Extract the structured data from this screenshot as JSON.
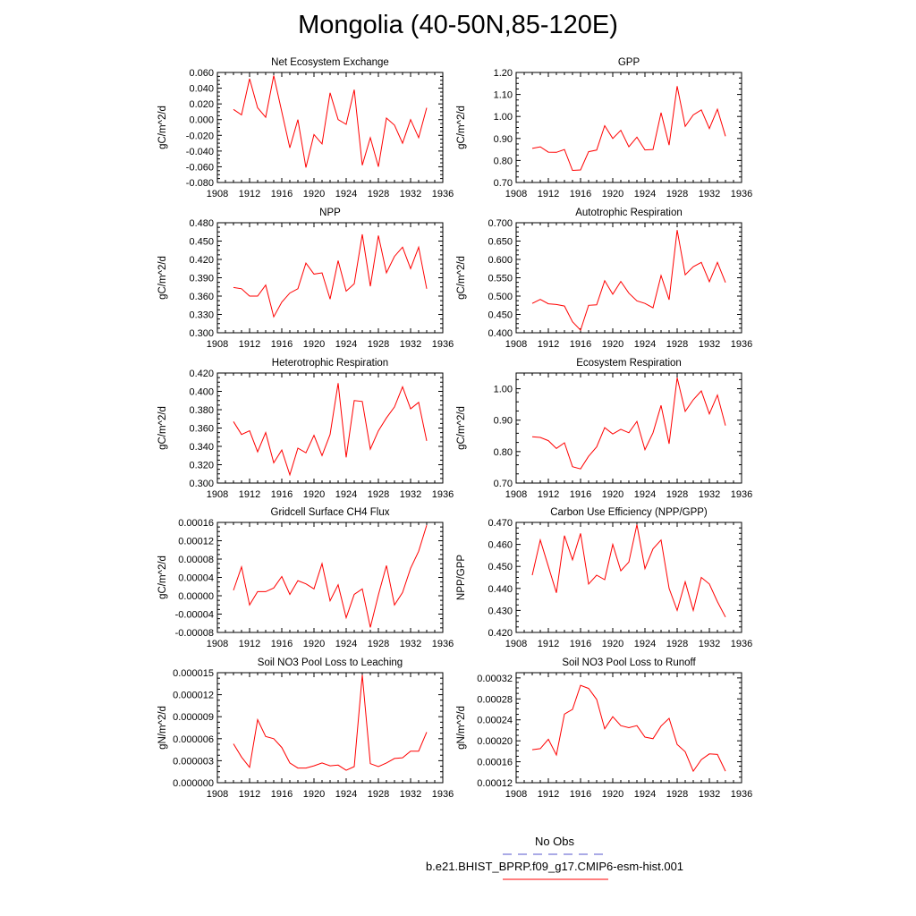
{
  "title": "Mongolia (40-50N,85-120E)",
  "legend": {
    "obs_label": "No Obs",
    "obs_color": "#5555cc",
    "run_label": "b.e21.BHIST_BPRP.f09_g17.CMIP6-esm-hist.001",
    "run_color": "#ff0000"
  },
  "chart_data": [
    {
      "type": "line",
      "title": "Net Ecosystem Exchange",
      "ylabel": "gC/m^2/d",
      "xlim": [
        1908,
        1936
      ],
      "ylim": [
        -0.08,
        0.06
      ],
      "xticks": [
        "1908",
        "1912",
        "1916",
        "1920",
        "1924",
        "1928",
        "1932",
        "1936"
      ],
      "yticks": [
        "-0.080",
        "-0.060",
        "-0.040",
        "-0.020",
        "0.000",
        "0.020",
        "0.040",
        "0.060"
      ],
      "grid": false,
      "x": [
        1910,
        1911,
        1912,
        1913,
        1914,
        1915,
        1916,
        1917,
        1918,
        1919,
        1920,
        1921,
        1922,
        1923,
        1924,
        1925,
        1926,
        1927,
        1928,
        1929,
        1930,
        1931,
        1932,
        1933,
        1934
      ],
      "values": [
        0.013,
        0.006,
        0.052,
        0.015,
        0.003,
        0.056,
        0.01,
        -0.036,
        0.0,
        -0.061,
        -0.019,
        -0.031,
        0.034,
        0.0,
        -0.006,
        0.038,
        -0.058,
        -0.023,
        -0.06,
        0.002,
        -0.007,
        -0.03,
        0.0,
        -0.023,
        0.015
      ]
    },
    {
      "type": "line",
      "title": "GPP",
      "ylabel": "gC/m^2/d",
      "xlim": [
        1908,
        1936
      ],
      "ylim": [
        0.7,
        1.2
      ],
      "xticks": [
        "1908",
        "1912",
        "1916",
        "1920",
        "1924",
        "1928",
        "1932",
        "1936"
      ],
      "yticks": [
        "0.70",
        "0.80",
        "0.90",
        "1.00",
        "1.10",
        "1.20"
      ],
      "grid": false,
      "x": [
        1910,
        1911,
        1912,
        1913,
        1914,
        1915,
        1916,
        1917,
        1918,
        1919,
        1920,
        1921,
        1922,
        1923,
        1924,
        1925,
        1926,
        1927,
        1928,
        1929,
        1930,
        1931,
        1932,
        1933,
        1934
      ],
      "values": [
        0.855,
        0.862,
        0.838,
        0.837,
        0.85,
        0.755,
        0.757,
        0.84,
        0.847,
        0.958,
        0.9,
        0.937,
        0.862,
        0.906,
        0.848,
        0.85,
        1.017,
        0.87,
        1.138,
        0.955,
        1.007,
        1.03,
        0.945,
        1.033,
        0.91
      ]
    },
    {
      "type": "line",
      "title": "NPP",
      "ylabel": "gC/m^2/d",
      "xlim": [
        1908,
        1936
      ],
      "ylim": [
        0.3,
        0.48
      ],
      "xticks": [
        "1908",
        "1912",
        "1916",
        "1920",
        "1924",
        "1928",
        "1932",
        "1936"
      ],
      "yticks": [
        "0.300",
        "0.330",
        "0.360",
        "0.390",
        "0.420",
        "0.450",
        "0.480"
      ],
      "grid": false,
      "x": [
        1910,
        1911,
        1912,
        1913,
        1914,
        1915,
        1916,
        1917,
        1918,
        1919,
        1920,
        1921,
        1922,
        1923,
        1924,
        1925,
        1926,
        1927,
        1928,
        1929,
        1930,
        1931,
        1932,
        1933,
        1934
      ],
      "values": [
        0.374,
        0.372,
        0.36,
        0.36,
        0.378,
        0.326,
        0.35,
        0.365,
        0.372,
        0.414,
        0.396,
        0.398,
        0.355,
        0.418,
        0.368,
        0.38,
        0.461,
        0.376,
        0.459,
        0.398,
        0.425,
        0.44,
        0.405,
        0.44,
        0.372
      ]
    },
    {
      "type": "line",
      "title": "Autotrophic Respiration",
      "ylabel": "gC/m^2/d",
      "xlim": [
        1908,
        1936
      ],
      "ylim": [
        0.4,
        0.7
      ],
      "xticks": [
        "1908",
        "1912",
        "1916",
        "1920",
        "1924",
        "1928",
        "1932",
        "1936"
      ],
      "yticks": [
        "0.400",
        "0.450",
        "0.500",
        "0.550",
        "0.600",
        "0.650",
        "0.700"
      ],
      "grid": false,
      "x": [
        1910,
        1911,
        1912,
        1913,
        1914,
        1915,
        1916,
        1917,
        1918,
        1919,
        1920,
        1921,
        1922,
        1923,
        1924,
        1925,
        1926,
        1927,
        1928,
        1929,
        1930,
        1931,
        1932,
        1933,
        1934
      ],
      "values": [
        0.48,
        0.491,
        0.479,
        0.477,
        0.473,
        0.43,
        0.407,
        0.475,
        0.476,
        0.542,
        0.505,
        0.54,
        0.508,
        0.487,
        0.48,
        0.468,
        0.556,
        0.49,
        0.68,
        0.558,
        0.58,
        0.592,
        0.539,
        0.592,
        0.537
      ]
    },
    {
      "type": "line",
      "title": "Heterotrophic Respiration",
      "ylabel": "gC/m^2/d",
      "xlim": [
        1908,
        1936
      ],
      "ylim": [
        0.3,
        0.42
      ],
      "xticks": [
        "1908",
        "1912",
        "1916",
        "1920",
        "1924",
        "1928",
        "1932",
        "1936"
      ],
      "yticks": [
        "0.300",
        "0.320",
        "0.340",
        "0.360",
        "0.380",
        "0.400",
        "0.420"
      ],
      "grid": false,
      "x": [
        1910,
        1911,
        1912,
        1913,
        1914,
        1915,
        1916,
        1917,
        1918,
        1919,
        1920,
        1921,
        1922,
        1923,
        1924,
        1925,
        1926,
        1927,
        1928,
        1929,
        1930,
        1931,
        1932,
        1933,
        1934
      ],
      "values": [
        0.367,
        0.353,
        0.357,
        0.334,
        0.355,
        0.322,
        0.336,
        0.309,
        0.338,
        0.333,
        0.352,
        0.33,
        0.353,
        0.409,
        0.328,
        0.39,
        0.389,
        0.337,
        0.357,
        0.371,
        0.383,
        0.405,
        0.381,
        0.388,
        0.346
      ]
    },
    {
      "type": "line",
      "title": "Ecosystem Respiration",
      "ylabel": "gC/m^2/d",
      "xlim": [
        1908,
        1936
      ],
      "ylim": [
        0.7,
        1.05
      ],
      "xticks": [
        "1908",
        "1912",
        "1916",
        "1920",
        "1924",
        "1928",
        "1932",
        "1936"
      ],
      "yticks": [
        "0.70",
        "0.80",
        "0.90",
        "1.00"
      ],
      "grid": false,
      "x": [
        1910,
        1911,
        1912,
        1913,
        1914,
        1915,
        1916,
        1917,
        1918,
        1919,
        1920,
        1921,
        1922,
        1923,
        1924,
        1925,
        1926,
        1927,
        1928,
        1929,
        1930,
        1931,
        1932,
        1933,
        1934
      ],
      "values": [
        0.847,
        0.845,
        0.835,
        0.81,
        0.828,
        0.752,
        0.745,
        0.785,
        0.815,
        0.876,
        0.856,
        0.871,
        0.86,
        0.896,
        0.806,
        0.86,
        0.947,
        0.825,
        1.035,
        0.928,
        0.965,
        0.993,
        0.92,
        0.98,
        0.883
      ]
    },
    {
      "type": "line",
      "title": "Gridcell Surface CH4 Flux",
      "ylabel": "gC/m^2/d",
      "xlim": [
        1908,
        1936
      ],
      "ylim": [
        -8e-05,
        0.00016
      ],
      "xticks": [
        "1908",
        "1912",
        "1916",
        "1920",
        "1924",
        "1928",
        "1932",
        "1936"
      ],
      "yticks": [
        "-0.00008",
        "-0.00004",
        "0.00000",
        "0.00004",
        "0.00008",
        "0.00012",
        "0.00016"
      ],
      "grid": false,
      "x": [
        1910,
        1911,
        1912,
        1913,
        1914,
        1915,
        1916,
        1917,
        1918,
        1919,
        1920,
        1921,
        1922,
        1923,
        1924,
        1925,
        1926,
        1927,
        1928,
        1929,
        1930,
        1931,
        1932,
        1933,
        1934
      ],
      "values": [
        1.2e-05,
        6.3e-05,
        -2e-05,
        9e-06,
        9e-06,
        1.7e-05,
        4.2e-05,
        3e-06,
        3.3e-05,
        2.6e-05,
        1.5e-05,
        7e-05,
        -1.1e-05,
        2.4e-05,
        -4.8e-05,
        3e-06,
        1.5e-05,
        -6.9e-05,
        2e-06,
        6.6e-05,
        -2e-05,
        7e-06,
        6e-05,
        9.7e-05,
        0.000154
      ]
    },
    {
      "type": "line",
      "title": "Carbon Use Efficiency (NPP/GPP)",
      "ylabel": "NPP/GPP",
      "xlim": [
        1908,
        1936
      ],
      "ylim": [
        0.42,
        0.47
      ],
      "xticks": [
        "1908",
        "1912",
        "1916",
        "1920",
        "1924",
        "1928",
        "1932",
        "1936"
      ],
      "yticks": [
        "0.420",
        "0.430",
        "0.440",
        "0.450",
        "0.460",
        "0.470"
      ],
      "grid": false,
      "x": [
        1910,
        1911,
        1912,
        1913,
        1914,
        1915,
        1916,
        1917,
        1918,
        1919,
        1920,
        1921,
        1922,
        1923,
        1924,
        1925,
        1926,
        1927,
        1928,
        1929,
        1930,
        1931,
        1932,
        1933,
        1934
      ],
      "values": [
        0.446,
        0.462,
        0.45,
        0.438,
        0.464,
        0.453,
        0.465,
        0.442,
        0.446,
        0.444,
        0.46,
        0.448,
        0.452,
        0.469,
        0.449,
        0.458,
        0.462,
        0.44,
        0.43,
        0.443,
        0.43,
        0.445,
        0.442,
        0.434,
        0.427
      ]
    },
    {
      "type": "line",
      "title": "Soil NO3 Pool Loss to Leaching",
      "ylabel": "gN/m^2/d",
      "xlim": [
        1908,
        1936
      ],
      "ylim": [
        0,
        1.5e-05
      ],
      "xticks": [
        "1908",
        "1912",
        "1916",
        "1920",
        "1924",
        "1928",
        "1932",
        "1936"
      ],
      "yticks": [
        "0.000000",
        "0.000003",
        "0.000006",
        "0.000009",
        "0.000012",
        "0.000015"
      ],
      "grid": false,
      "x": [
        1910,
        1911,
        1912,
        1913,
        1914,
        1915,
        1916,
        1917,
        1918,
        1919,
        1920,
        1921,
        1922,
        1923,
        1924,
        1925,
        1926,
        1927,
        1928,
        1929,
        1930,
        1931,
        1932,
        1933,
        1934
      ],
      "values": [
        5.3e-06,
        3.5e-06,
        2.1e-06,
        8.6e-06,
        6.3e-06,
        6e-06,
        4.8e-06,
        2.7e-06,
        2e-06,
        2e-06,
        2.3e-06,
        2.7e-06,
        2.3e-06,
        2.4e-06,
        1.7e-06,
        2.2e-06,
        1.47e-05,
        2.6e-06,
        2.2e-06,
        2.7e-06,
        3.3e-06,
        3.4e-06,
        4.3e-06,
        4.3e-06,
        6.9e-06
      ]
    },
    {
      "type": "line",
      "title": "Soil NO3 Pool Loss to Runoff",
      "ylabel": "gN/m^2/d",
      "xlim": [
        1908,
        1936
      ],
      "ylim": [
        0.00012,
        0.00033
      ],
      "xticks": [
        "1908",
        "1912",
        "1916",
        "1920",
        "1924",
        "1928",
        "1932",
        "1936"
      ],
      "yticks": [
        "0.00012",
        "0.00016",
        "0.00020",
        "0.00024",
        "0.00028",
        "0.00032"
      ],
      "grid": false,
      "x": [
        1910,
        1911,
        1912,
        1913,
        1914,
        1915,
        1916,
        1917,
        1918,
        1919,
        1920,
        1921,
        1922,
        1923,
        1924,
        1925,
        1926,
        1927,
        1928,
        1929,
        1930,
        1931,
        1932,
        1933,
        1934
      ],
      "values": [
        0.000183,
        0.000185,
        0.000203,
        0.000173,
        0.000251,
        0.00026,
        0.000306,
        0.0003,
        0.000279,
        0.000223,
        0.000246,
        0.000229,
        0.000225,
        0.000229,
        0.000207,
        0.000204,
        0.000228,
        0.000243,
        0.000193,
        0.000179,
        0.000142,
        0.000164,
        0.000175,
        0.000174,
        0.000142
      ]
    }
  ]
}
